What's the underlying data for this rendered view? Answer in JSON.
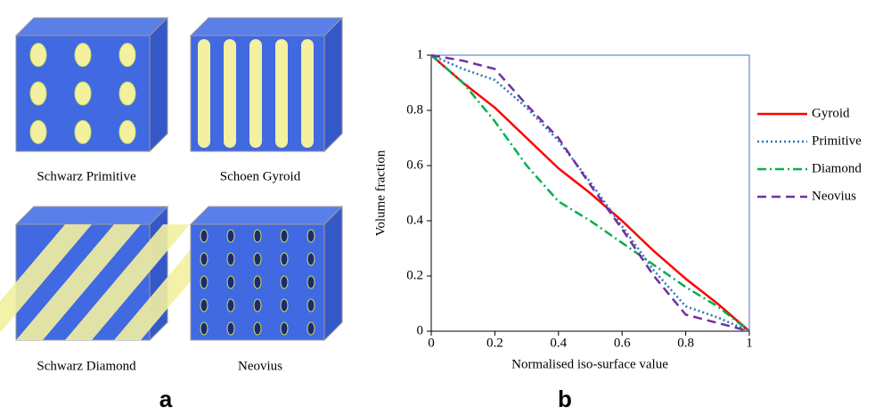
{
  "figure": {
    "panel_a": {
      "label": "a",
      "structures": [
        "Schwarz Primitive",
        "Schoen Gyroid",
        "Schwarz Diamond",
        "Neovius"
      ]
    }
  },
  "chart_data": {
    "type": "line",
    "panel_label": "b",
    "x_label": "Normalised iso-surface value",
    "y_label": "Volume fraction",
    "x": [
      0,
      0.1,
      0.2,
      0.3,
      0.4,
      0.5,
      0.6,
      0.7,
      0.8,
      0.9,
      1
    ],
    "series": [
      {
        "name": "Gyroid",
        "color": "#ff0000",
        "style": "solid",
        "values": [
          1,
          0.9,
          0.81,
          0.7,
          0.59,
          0.5,
          0.4,
          0.29,
          0.19,
          0.1,
          0
        ]
      },
      {
        "name": "Primitive",
        "color": "#2e75b6",
        "style": "dotted",
        "values": [
          1,
          0.95,
          0.91,
          0.81,
          0.69,
          0.54,
          0.38,
          0.22,
          0.09,
          0.05,
          0
        ]
      },
      {
        "name": "Diamond",
        "color": "#00b050",
        "style": "dashdot",
        "values": [
          1,
          0.9,
          0.76,
          0.6,
          0.47,
          0.4,
          0.32,
          0.24,
          0.16,
          0.09,
          0
        ]
      },
      {
        "name": "Neovius",
        "color": "#7030a0",
        "style": "dashed",
        "values": [
          1,
          0.98,
          0.95,
          0.82,
          0.7,
          0.53,
          0.37,
          0.2,
          0.06,
          0.03,
          0
        ]
      }
    ],
    "xlim": [
      0,
      1
    ],
    "ylim": [
      0,
      1
    ],
    "xticks": [
      0,
      0.2,
      0.4,
      0.6,
      0.8,
      1
    ],
    "yticks": [
      0,
      0.2,
      0.4,
      0.6,
      0.8,
      1
    ],
    "legend": "right",
    "frame_color": "#4472c4"
  }
}
